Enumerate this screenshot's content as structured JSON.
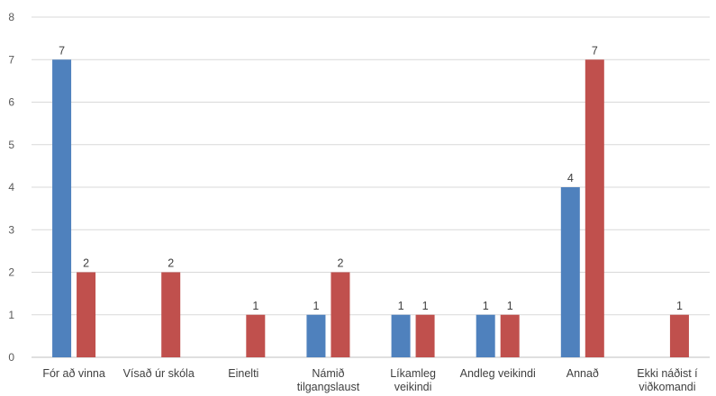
{
  "chart_data": {
    "type": "bar",
    "title": "",
    "xlabel": "",
    "ylabel": "",
    "ylim": [
      0,
      8
    ],
    "yticks": [
      0,
      1,
      2,
      3,
      4,
      5,
      6,
      7,
      8
    ],
    "grid": true,
    "legend": "none",
    "categories": [
      [
        "Fór að vinna"
      ],
      [
        "Vísað úr skóla"
      ],
      [
        "Einelti"
      ],
      [
        "Námið",
        "tilgangslaust"
      ],
      [
        "Líkamleg",
        "veikindi"
      ],
      [
        "Andleg veikindi"
      ],
      [
        "Annað"
      ],
      [
        "Ekki náðist í",
        "viðkomandi"
      ]
    ],
    "series": [
      {
        "color": "#4f81bd",
        "values": [
          7,
          null,
          null,
          1,
          1,
          1,
          4,
          null
        ]
      },
      {
        "color": "#c0504d",
        "values": [
          2,
          2,
          1,
          2,
          1,
          1,
          7,
          1
        ]
      }
    ]
  }
}
